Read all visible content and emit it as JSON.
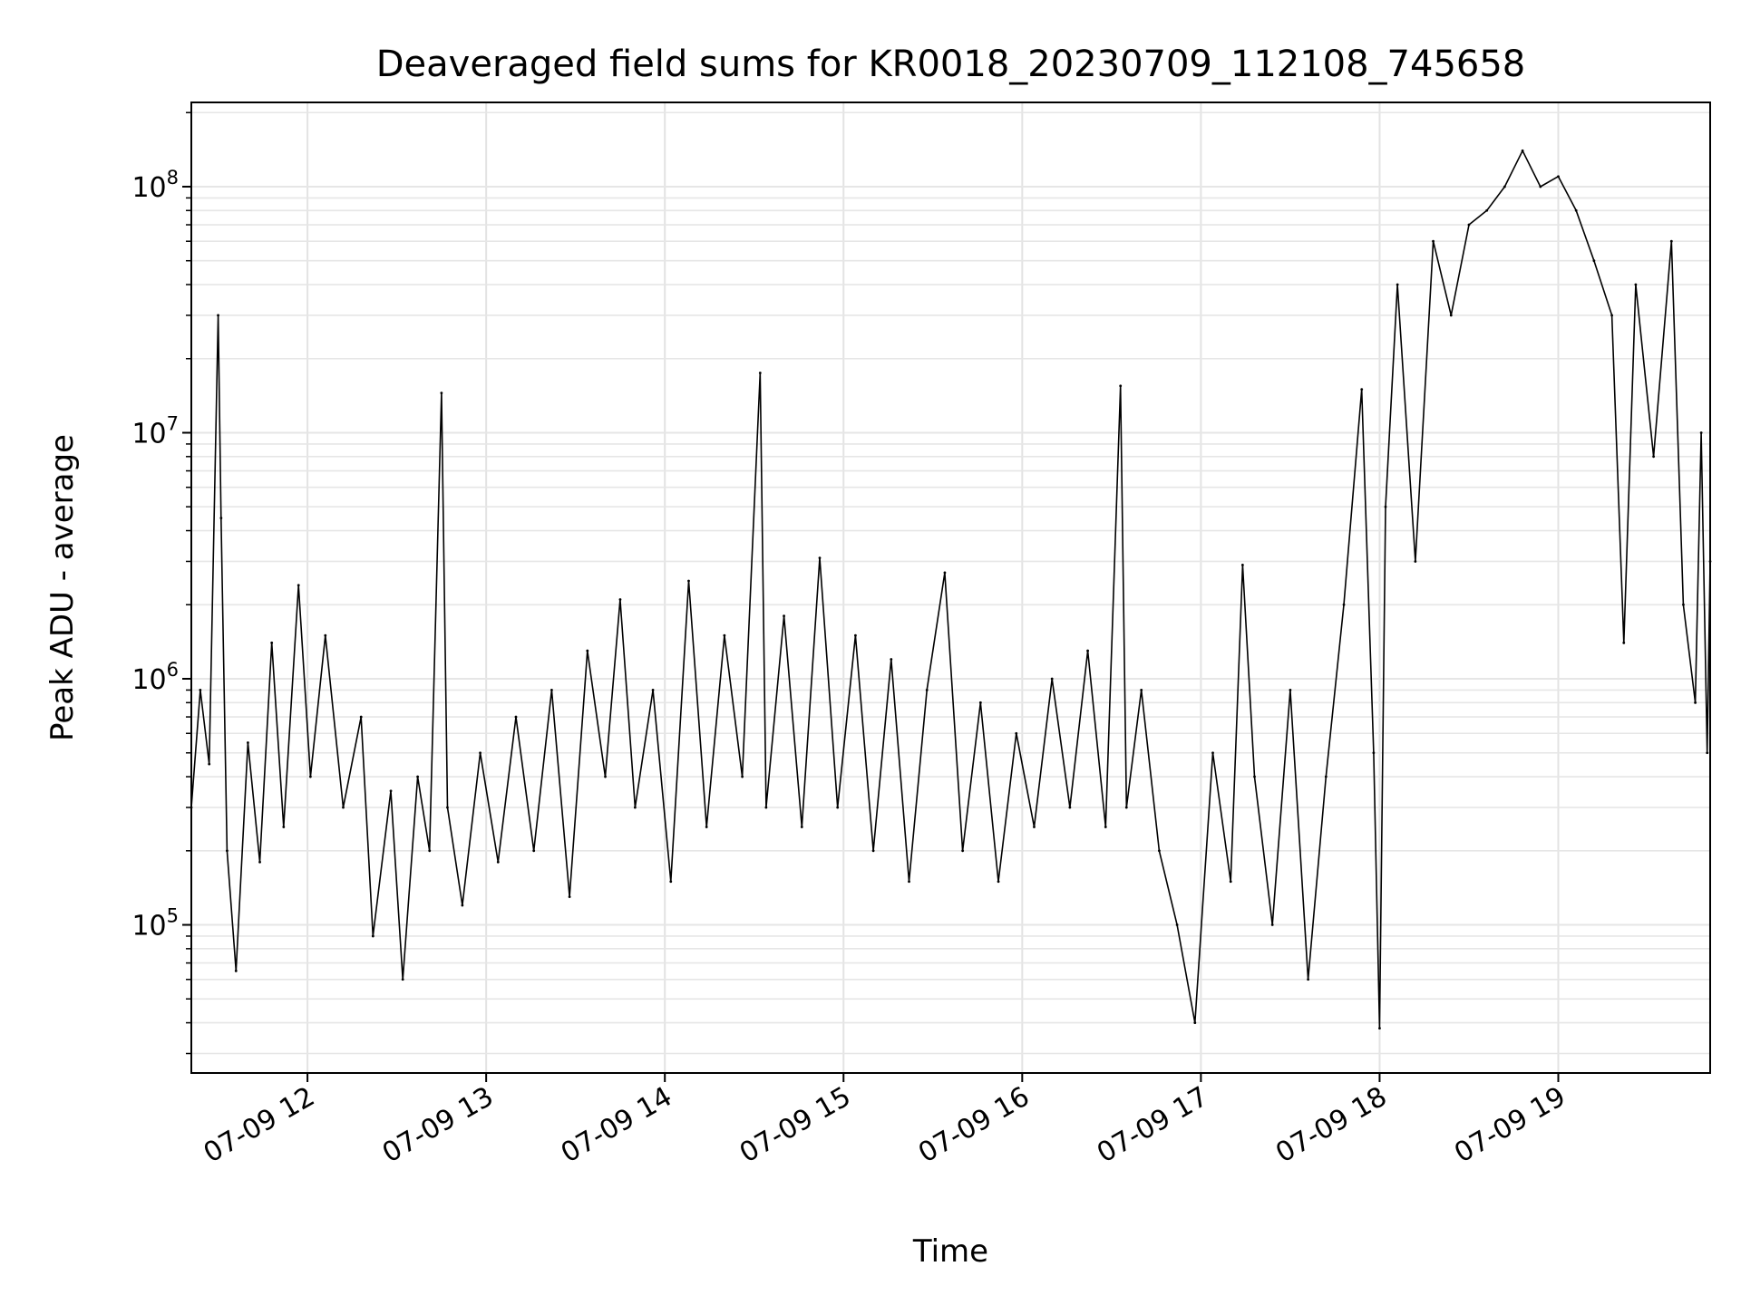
{
  "chart_data": {
    "type": "line",
    "title": "Deaveraged field sums for KR0018_20230709_112108_745658",
    "xlabel": "Time",
    "ylabel": "Peak ADU - average",
    "yscale": "log",
    "ylim": [
      25000,
      220000000
    ],
    "xlim": [
      "2023-07-09 11:21",
      "2023-07-09 19:51"
    ],
    "x_ticks": [
      {
        "value": "2023-07-09 12:00",
        "label": "07-09 12"
      },
      {
        "value": "2023-07-09 13:00",
        "label": "07-09 13"
      },
      {
        "value": "2023-07-09 14:00",
        "label": "07-09 14"
      },
      {
        "value": "2023-07-09 15:00",
        "label": "07-09 15"
      },
      {
        "value": "2023-07-09 16:00",
        "label": "07-09 16"
      },
      {
        "value": "2023-07-09 17:00",
        "label": "07-09 17"
      },
      {
        "value": "2023-07-09 18:00",
        "label": "07-09 18"
      },
      {
        "value": "2023-07-09 19:00",
        "label": "07-09 19"
      }
    ],
    "y_ticks": [
      {
        "value": 100000,
        "base": "10",
        "exp": "5"
      },
      {
        "value": 1000000,
        "base": "10",
        "exp": "6"
      },
      {
        "value": 10000000,
        "base": "10",
        "exp": "7"
      },
      {
        "value": 100000000,
        "base": "10",
        "exp": "8"
      }
    ],
    "grid": true,
    "line_color": "#000000",
    "series": [
      {
        "points": [
          [
            "2023-07-09 11:21",
            300000
          ],
          [
            "2023-07-09 11:24",
            900000
          ],
          [
            "2023-07-09 11:27",
            450000
          ],
          [
            "2023-07-09 11:30",
            30000000
          ],
          [
            "2023-07-09 11:31",
            4500000
          ],
          [
            "2023-07-09 11:33",
            200000
          ],
          [
            "2023-07-09 11:36",
            65000
          ],
          [
            "2023-07-09 11:40",
            550000
          ],
          [
            "2023-07-09 11:44",
            180000
          ],
          [
            "2023-07-09 11:48",
            1400000
          ],
          [
            "2023-07-09 11:52",
            250000
          ],
          [
            "2023-07-09 11:57",
            2400000
          ],
          [
            "2023-07-09 12:01",
            400000
          ],
          [
            "2023-07-09 12:06",
            1500000
          ],
          [
            "2023-07-09 12:12",
            300000
          ],
          [
            "2023-07-09 12:18",
            700000
          ],
          [
            "2023-07-09 12:22",
            90000
          ],
          [
            "2023-07-09 12:28",
            350000
          ],
          [
            "2023-07-09 12:32",
            60000
          ],
          [
            "2023-07-09 12:37",
            400000
          ],
          [
            "2023-07-09 12:41",
            200000
          ],
          [
            "2023-07-09 12:45",
            14500000
          ],
          [
            "2023-07-09 12:47",
            300000
          ],
          [
            "2023-07-09 12:52",
            120000
          ],
          [
            "2023-07-09 12:58",
            500000
          ],
          [
            "2023-07-09 13:04",
            180000
          ],
          [
            "2023-07-09 13:10",
            700000
          ],
          [
            "2023-07-09 13:16",
            200000
          ],
          [
            "2023-07-09 13:22",
            900000
          ],
          [
            "2023-07-09 13:28",
            130000
          ],
          [
            "2023-07-09 13:34",
            1300000
          ],
          [
            "2023-07-09 13:40",
            400000
          ],
          [
            "2023-07-09 13:45",
            2100000
          ],
          [
            "2023-07-09 13:50",
            300000
          ],
          [
            "2023-07-09 13:56",
            900000
          ],
          [
            "2023-07-09 14:02",
            150000
          ],
          [
            "2023-07-09 14:08",
            2500000
          ],
          [
            "2023-07-09 14:14",
            250000
          ],
          [
            "2023-07-09 14:20",
            1500000
          ],
          [
            "2023-07-09 14:26",
            400000
          ],
          [
            "2023-07-09 14:32",
            17500000
          ],
          [
            "2023-07-09 14:34",
            300000
          ],
          [
            "2023-07-09 14:40",
            1800000
          ],
          [
            "2023-07-09 14:46",
            250000
          ],
          [
            "2023-07-09 14:52",
            3100000
          ],
          [
            "2023-07-09 14:58",
            300000
          ],
          [
            "2023-07-09 15:04",
            1500000
          ],
          [
            "2023-07-09 15:10",
            200000
          ],
          [
            "2023-07-09 15:16",
            1200000
          ],
          [
            "2023-07-09 15:22",
            150000
          ],
          [
            "2023-07-09 15:28",
            900000
          ],
          [
            "2023-07-09 15:34",
            2700000
          ],
          [
            "2023-07-09 15:40",
            200000
          ],
          [
            "2023-07-09 15:46",
            800000
          ],
          [
            "2023-07-09 15:52",
            150000
          ],
          [
            "2023-07-09 15:58",
            600000
          ],
          [
            "2023-07-09 16:04",
            250000
          ],
          [
            "2023-07-09 16:10",
            1000000
          ],
          [
            "2023-07-09 16:16",
            300000
          ],
          [
            "2023-07-09 16:22",
            1300000
          ],
          [
            "2023-07-09 16:28",
            250000
          ],
          [
            "2023-07-09 16:33",
            15500000
          ],
          [
            "2023-07-09 16:35",
            300000
          ],
          [
            "2023-07-09 16:40",
            900000
          ],
          [
            "2023-07-09 16:46",
            200000
          ],
          [
            "2023-07-09 16:52",
            100000
          ],
          [
            "2023-07-09 16:58",
            40000
          ],
          [
            "2023-07-09 17:04",
            500000
          ],
          [
            "2023-07-09 17:10",
            150000
          ],
          [
            "2023-07-09 17:14",
            2900000
          ],
          [
            "2023-07-09 17:18",
            400000
          ],
          [
            "2023-07-09 17:24",
            100000
          ],
          [
            "2023-07-09 17:30",
            900000
          ],
          [
            "2023-07-09 17:36",
            60000
          ],
          [
            "2023-07-09 17:42",
            400000
          ],
          [
            "2023-07-09 17:48",
            2000000
          ],
          [
            "2023-07-09 17:54",
            15000000
          ],
          [
            "2023-07-09 17:58",
            500000
          ],
          [
            "2023-07-09 18:00",
            38000
          ],
          [
            "2023-07-09 18:02",
            5000000
          ],
          [
            "2023-07-09 18:06",
            40000000
          ],
          [
            "2023-07-09 18:12",
            3000000
          ],
          [
            "2023-07-09 18:18",
            60000000
          ],
          [
            "2023-07-09 18:24",
            30000000
          ],
          [
            "2023-07-09 18:30",
            70000000
          ],
          [
            "2023-07-09 18:36",
            80000000
          ],
          [
            "2023-07-09 18:42",
            100000000
          ],
          [
            "2023-07-09 18:48",
            140000000
          ],
          [
            "2023-07-09 18:54",
            100000000
          ],
          [
            "2023-07-09 19:00",
            110000000
          ],
          [
            "2023-07-09 19:06",
            80000000
          ],
          [
            "2023-07-09 19:12",
            50000000
          ],
          [
            "2023-07-09 19:18",
            30000000
          ],
          [
            "2023-07-09 19:22",
            1400000
          ],
          [
            "2023-07-09 19:26",
            40000000
          ],
          [
            "2023-07-09 19:32",
            8000000
          ],
          [
            "2023-07-09 19:38",
            60000000
          ],
          [
            "2023-07-09 19:42",
            2000000
          ],
          [
            "2023-07-09 19:46",
            800000
          ],
          [
            "2023-07-09 19:48",
            10000000
          ],
          [
            "2023-07-09 19:50",
            500000
          ],
          [
            "2023-07-09 19:51",
            3000000
          ]
        ]
      }
    ]
  }
}
